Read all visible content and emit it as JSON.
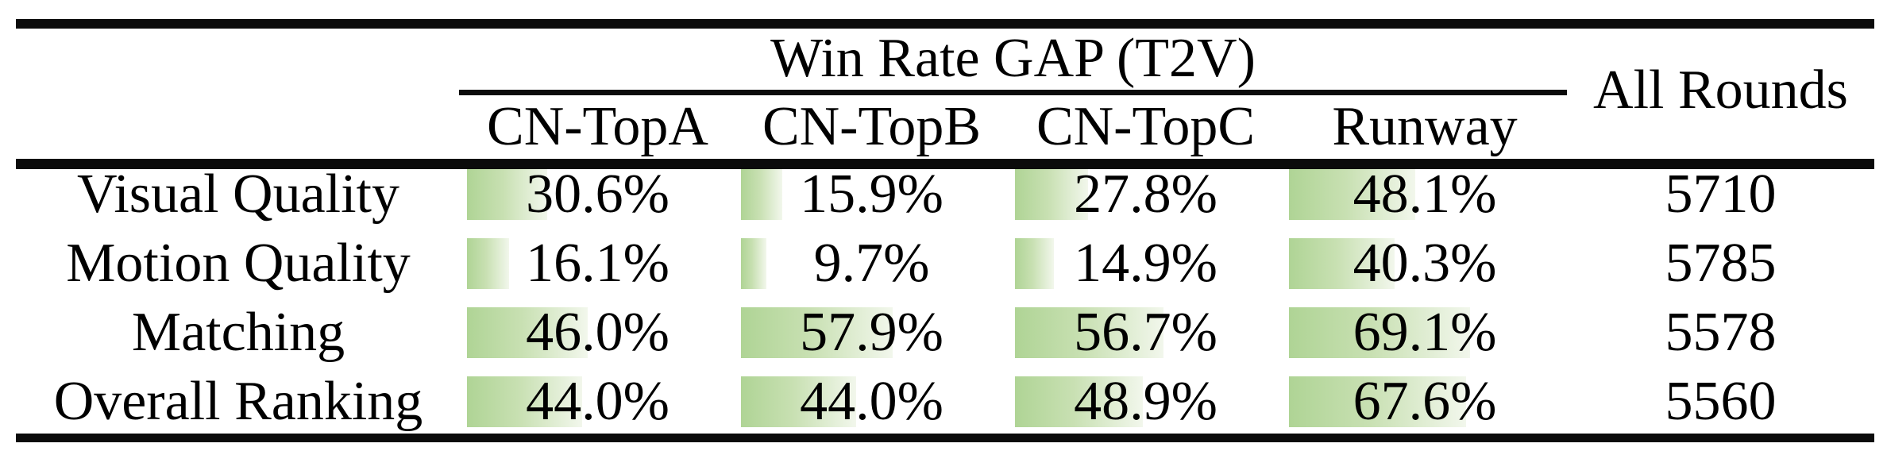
{
  "colors": {
    "bar_green_start": "#afd495",
    "bar_green_end": "#f2f7ec",
    "rule_black": "#0b0b0b",
    "text": "#000000",
    "background": "#ffffff"
  },
  "chart_data": {
    "type": "table",
    "title": "Win Rate GAP (T2V)",
    "extra_column": "All Rounds",
    "columns": [
      "CN-TopA",
      "CN-TopB",
      "CN-TopC",
      "Runway"
    ],
    "rows": [
      {
        "label": "Visual Quality",
        "win_rate_gap_percent": [
          30.6,
          15.9,
          27.8,
          48.1
        ],
        "all_rounds": 5710
      },
      {
        "label": "Motion Quality",
        "win_rate_gap_percent": [
          16.1,
          9.7,
          14.9,
          40.3
        ],
        "all_rounds": 5785
      },
      {
        "label": "Matching",
        "win_rate_gap_percent": [
          46.0,
          57.9,
          56.7,
          69.1
        ],
        "all_rounds": 5578
      },
      {
        "label": "Overall Ranking",
        "win_rate_gap_percent": [
          44.0,
          44.0,
          48.9,
          67.6
        ],
        "all_rounds": 5560
      }
    ],
    "layout_hints": {
      "bar_style": "horizontal in-cell data bar, green fading to white, length proportional to percent",
      "value_format": "one decimal place with % sign",
      "rules": "thick top/bottom and header rules; thin rule under spanning title"
    }
  }
}
